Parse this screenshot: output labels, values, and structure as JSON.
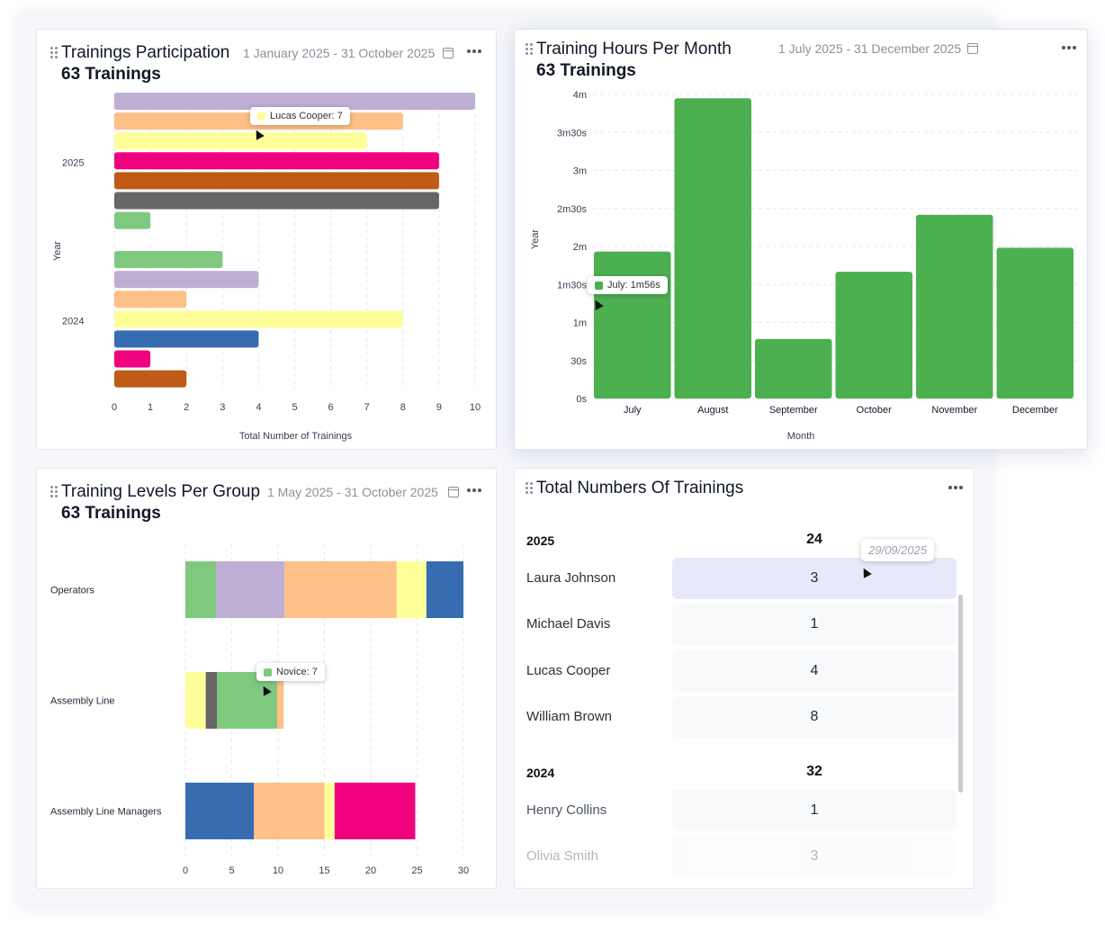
{
  "card1": {
    "title": "Trainings Participation",
    "date_range": "1 January 2025 - 31 October 2025",
    "subtitle": "63 Trainings",
    "tooltip": {
      "label": "Lucas Cooper: 7",
      "color": "#ffff99"
    }
  },
  "card2": {
    "title": "Training Hours Per Month",
    "date_range": "1 July 2025 - 31 December 2025",
    "subtitle": "63 Trainings",
    "tooltip": {
      "label": "July: 1m56s",
      "color": "#4caf50"
    }
  },
  "card3": {
    "title": "Training Levels Per Group",
    "date_range": "1 May 2025 - 31 October 2025",
    "subtitle": "63 Trainings",
    "tooltip": {
      "label": "Novice: 7",
      "color": "#7fc97f"
    }
  },
  "card4": {
    "title": "Total Numbers Of Trainings",
    "date_tooltip": "29/09/2025",
    "groups": [
      {
        "year": "2025",
        "total": "24",
        "rows": [
          {
            "name": "Laura Johnson",
            "value": "3"
          },
          {
            "name": "Michael Davis",
            "value": "1"
          },
          {
            "name": "Lucas Cooper",
            "value": "4"
          },
          {
            "name": "William Brown",
            "value": "8"
          }
        ]
      },
      {
        "year": "2024",
        "total": "32",
        "rows": [
          {
            "name": "Henry Collins",
            "value": "1"
          },
          {
            "name": "Olivia Smith",
            "value": "3"
          }
        ]
      }
    ]
  },
  "chart_data": [
    {
      "type": "bar",
      "orientation": "horizontal",
      "ylabel": "Year",
      "xlabel": "Total Number of Trainings",
      "xlim": [
        0,
        10
      ],
      "xticks": [
        "0",
        "1",
        "2",
        "3",
        "4",
        "5",
        "6",
        "7",
        "8",
        "9",
        "10"
      ],
      "groups": [
        {
          "category": "2025",
          "values": [
            10,
            8,
            7,
            9,
            9,
            9,
            1
          ],
          "colors": [
            "#beaed4",
            "#fdc086",
            "#ffff99",
            "#f0027f",
            "#bf5b17",
            "#666666",
            "#7fc97f"
          ]
        },
        {
          "category": "2024",
          "values": [
            3,
            4,
            2,
            8,
            4,
            1,
            2
          ],
          "colors": [
            "#7fc97f",
            "#beaed4",
            "#fdc086",
            "#ffff99",
            "#386cb0",
            "#f0027f",
            "#bf5b17"
          ]
        }
      ],
      "grid": true
    },
    {
      "type": "bar",
      "xlabel": "Month",
      "ylabel": "Year",
      "categories": [
        "July",
        "August",
        "September",
        "October",
        "November",
        "December"
      ],
      "values_seconds": [
        116,
        237,
        47,
        100,
        145,
        119
      ],
      "ylim_seconds": [
        0,
        240
      ],
      "yticks": [
        "0s",
        "30s",
        "1m",
        "1m30s",
        "2m",
        "2m30s",
        "3m",
        "3m30s",
        "4m"
      ],
      "color": "#4caf50",
      "grid": true
    },
    {
      "type": "bar",
      "orientation": "horizontal",
      "stacked": true,
      "categories": [
        "Operators",
        "Assembly Line",
        "Assembly Line Managers"
      ],
      "xlim": [
        0,
        30
      ],
      "xticks": [
        "0",
        "5",
        "10",
        "15",
        "20",
        "25",
        "30"
      ],
      "segments": [
        [
          {
            "value": 3.3,
            "color": "#7fc97f"
          },
          {
            "value": 7.4,
            "color": "#beaed4"
          },
          {
            "value": 12.1,
            "color": "#fdc086"
          },
          {
            "value": 3.2,
            "color": "#ffff99"
          },
          {
            "value": 4.0,
            "color": "#386cb0"
          }
        ],
        [
          {
            "value": 2.2,
            "color": "#ffff99"
          },
          {
            "value": 1.2,
            "color": "#666666"
          },
          {
            "value": 6.5,
            "color": "#7fc97f"
          },
          {
            "value": 0.7,
            "color": "#fdc086"
          }
        ],
        [
          {
            "value": 7.4,
            "color": "#386cb0"
          },
          {
            "value": 7.6,
            "color": "#fdc086"
          },
          {
            "value": 1.1,
            "color": "#ffff99"
          },
          {
            "value": 8.7,
            "color": "#f0027f"
          }
        ]
      ],
      "grid": true
    }
  ]
}
